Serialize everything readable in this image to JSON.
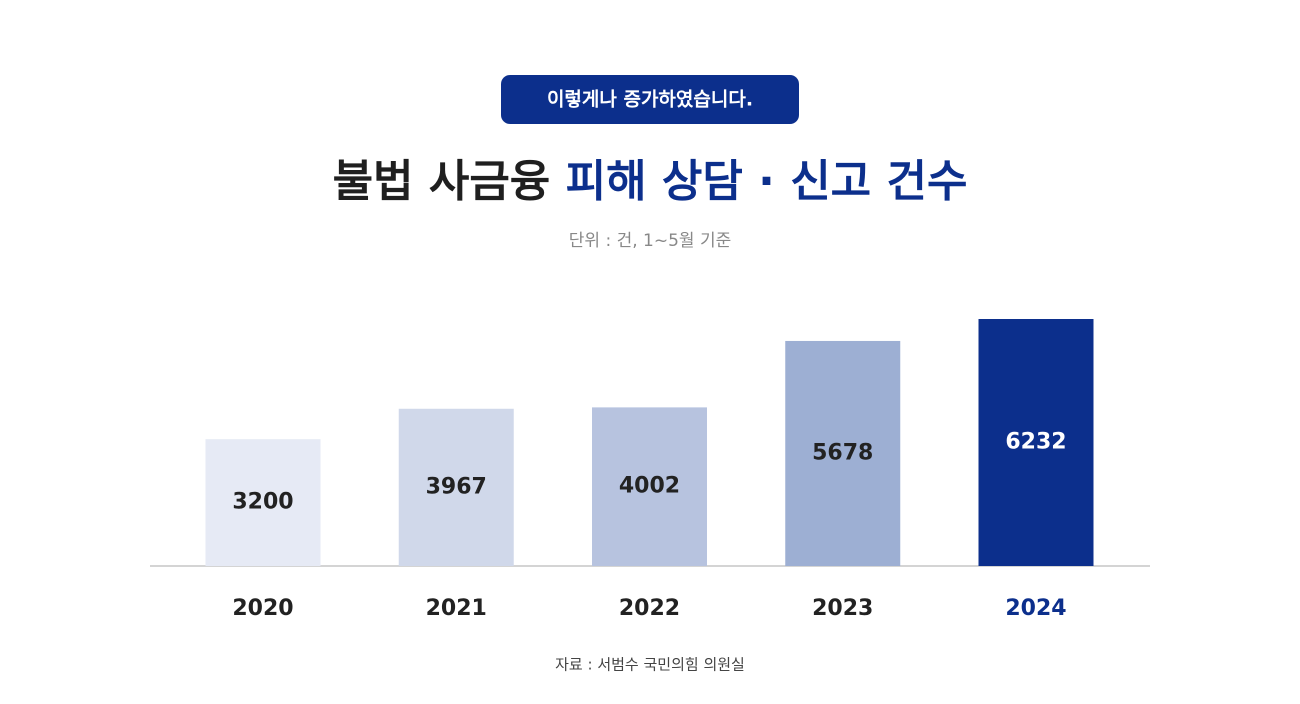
{
  "chart_data": {
    "type": "bar",
    "badge": "이렇게나 증가하였습니다.",
    "title": [
      "불법 사금융",
      "피해 상담 · 신고 건수"
    ],
    "title_colors": [
      "#1f1f1f",
      "#0c2f8c"
    ],
    "subtitle": "단위 : 건, 1~5월 기준",
    "source": "자료 : 서범수 국민의힘 의원실",
    "categories": [
      "2020",
      "2021",
      "2022",
      "2023",
      "2024"
    ],
    "values": [
      3200,
      3967,
      4002,
      5678,
      6232
    ],
    "colors": [
      "#e6eaf5",
      "#d0d8ea",
      "#b7c3df",
      "#9dafd3",
      "#0c2f8c"
    ]
  }
}
